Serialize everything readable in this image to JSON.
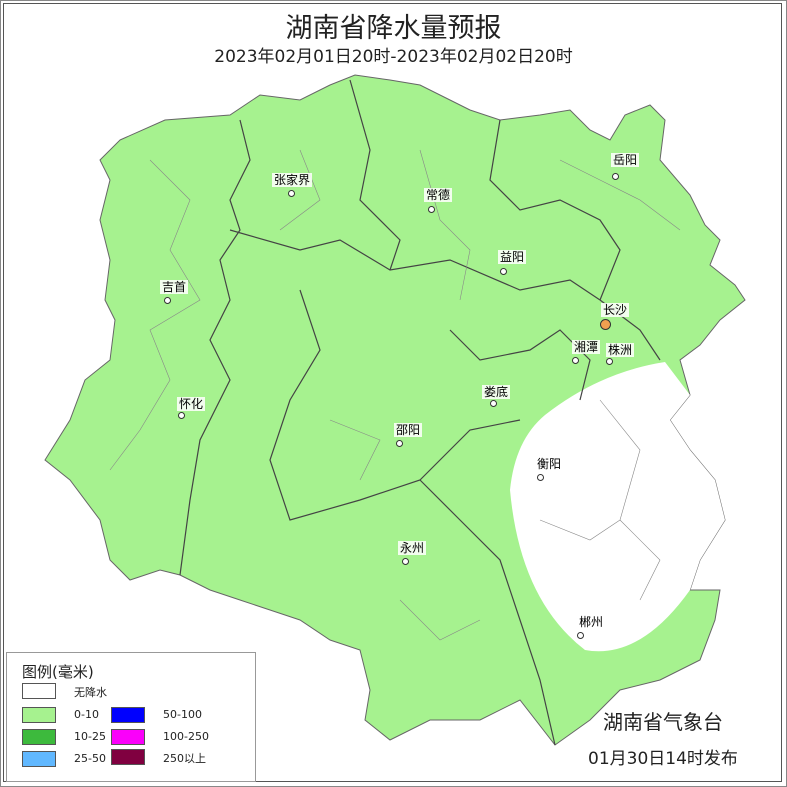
{
  "title": "湖南省降水量预报",
  "subtitle": "2023年02月01日20时-2023年02月02日20时",
  "cities": [
    {
      "name": "张家界",
      "category": "0-10"
    },
    {
      "name": "常德",
      "category": "0-10"
    },
    {
      "name": "岳阳",
      "category": "0-10"
    },
    {
      "name": "益阳",
      "category": "0-10"
    },
    {
      "name": "吉首",
      "category": "0-10"
    },
    {
      "name": "长沙",
      "category": "0-10",
      "capital": true
    },
    {
      "name": "湘潭",
      "category": "0-10"
    },
    {
      "name": "株洲",
      "category": "0-10"
    },
    {
      "name": "怀化",
      "category": "0-10"
    },
    {
      "name": "娄底",
      "category": "0-10"
    },
    {
      "name": "邵阳",
      "category": "0-10"
    },
    {
      "name": "衡阳",
      "category": "无降水"
    },
    {
      "name": "永州",
      "category": "0-10"
    },
    {
      "name": "郴州",
      "category": "无降水"
    }
  ],
  "legend": {
    "title": "图例(毫米)",
    "items": [
      {
        "label": "无降水",
        "color": "#ffffff"
      },
      {
        "label": "0-10",
        "color": "#a6f28f"
      },
      {
        "label": "10-25",
        "color": "#3dba3d"
      },
      {
        "label": "25-50",
        "color": "#61b8ff"
      },
      {
        "label": "50-100",
        "color": "#0000fe"
      },
      {
        "label": "100-250",
        "color": "#fa00fa"
      },
      {
        "label": "250以上",
        "color": "#800040"
      }
    ]
  },
  "issuer": "湖南省气象台",
  "issue_time": "01月30日14时发布"
}
